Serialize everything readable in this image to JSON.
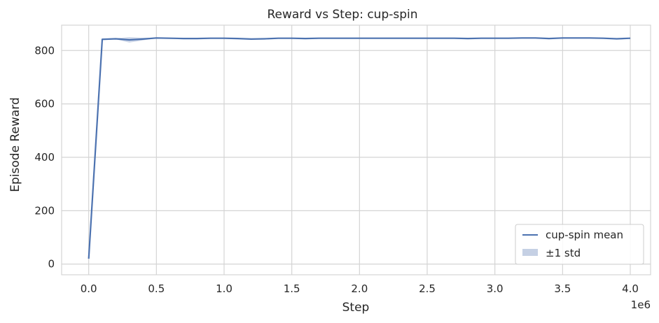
{
  "chart_data": {
    "type": "line",
    "title": "Reward vs Step: cup-spin",
    "xlabel": "Step",
    "ylabel": "Episode Reward",
    "x_offset_label": "1e6",
    "xlim": [
      -0.2,
      4.15
    ],
    "ylim": [
      -40,
      895
    ],
    "xticks": [
      0.0,
      0.5,
      1.0,
      1.5,
      2.0,
      2.5,
      3.0,
      3.5,
      4.0
    ],
    "xtick_labels": [
      "0.0",
      "0.5",
      "1.0",
      "1.5",
      "2.0",
      "2.5",
      "3.0",
      "3.5",
      "4.0"
    ],
    "yticks": [
      0,
      200,
      400,
      600,
      800
    ],
    "ytick_labels": [
      "0",
      "200",
      "400",
      "600",
      "800"
    ],
    "grid": true,
    "legend_position": "lower-right",
    "colors": {
      "line": "#4c72b0",
      "band": "#c5d0e4",
      "grid": "#d4d4d4"
    },
    "series": [
      {
        "name": "cup-spin mean",
        "x": [
          0.0,
          0.1,
          0.2,
          0.3,
          0.4,
          0.5,
          0.6,
          0.7,
          0.8,
          0.9,
          1.0,
          1.1,
          1.2,
          1.3,
          1.4,
          1.5,
          1.6,
          1.7,
          1.8,
          1.9,
          2.0,
          2.1,
          2.2,
          2.3,
          2.4,
          2.5,
          2.6,
          2.7,
          2.8,
          2.9,
          3.0,
          3.1,
          3.2,
          3.3,
          3.4,
          3.5,
          3.6,
          3.7,
          3.8,
          3.9,
          4.0
        ],
        "y": [
          20,
          842,
          844,
          840,
          843,
          847,
          846,
          845,
          845,
          846,
          846,
          845,
          843,
          844,
          846,
          846,
          845,
          846,
          846,
          846,
          846,
          846,
          846,
          846,
          846,
          846,
          846,
          846,
          845,
          846,
          846,
          846,
          847,
          847,
          845,
          847,
          847,
          847,
          846,
          844,
          846
        ],
        "lower": [
          18,
          841,
          842,
          830,
          838,
          846,
          845,
          844,
          844,
          845,
          845,
          844,
          842,
          843,
          845,
          845,
          844,
          845,
          845,
          845,
          845,
          845,
          845,
          845,
          845,
          845,
          845,
          845,
          844,
          845,
          845,
          845,
          846,
          846,
          844,
          846,
          846,
          846,
          845,
          843,
          845
        ],
        "upper": [
          22,
          843,
          846,
          850,
          848,
          848,
          847,
          846,
          846,
          847,
          847,
          846,
          844,
          845,
          847,
          847,
          846,
          847,
          847,
          847,
          847,
          847,
          847,
          847,
          847,
          847,
          847,
          847,
          846,
          847,
          847,
          847,
          848,
          848,
          846,
          848,
          848,
          848,
          847,
          845,
          847
        ]
      }
    ],
    "legend": [
      {
        "label": "cup-spin mean",
        "kind": "line"
      },
      {
        "label": "±1 std",
        "kind": "band"
      }
    ]
  }
}
